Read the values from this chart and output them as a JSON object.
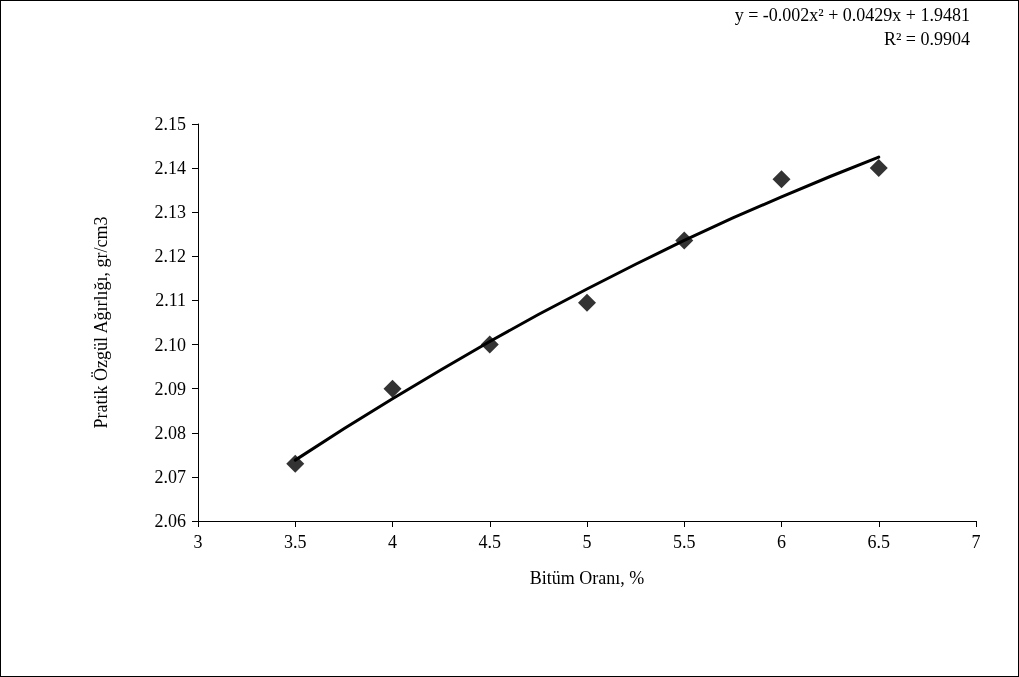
{
  "chart_data": {
    "type": "scatter",
    "xlabel": "Bitüm Oranı, %",
    "ylabel": "Pratik Özgül Ağırlığı, gr/cm3",
    "xlim": [
      3,
      7
    ],
    "xticks": [
      3,
      3.5,
      4,
      4.5,
      5,
      5.5,
      6,
      6.5,
      7
    ],
    "ylim": [
      2.06,
      2.15
    ],
    "yticks": [
      {
        "value": 2.06,
        "label": "2.06"
      },
      {
        "value": 2.07,
        "label": "2.07"
      },
      {
        "value": 2.08,
        "label": "2.08"
      },
      {
        "value": 2.09,
        "label": "2.09"
      },
      {
        "value": 2.1,
        "label": "2.10"
      },
      {
        "value": 2.11,
        "label": "2.11"
      },
      {
        "value": 2.12,
        "label": "2.12"
      },
      {
        "value": 2.13,
        "label": "2.13"
      },
      {
        "value": 2.14,
        "label": "2.14"
      },
      {
        "value": 2.15,
        "label": "2.15"
      }
    ],
    "grid": false,
    "marker": "diamond",
    "x": [
      3.5,
      4,
      4.5,
      5,
      5.5,
      6,
      6.5
    ],
    "series": [
      {
        "color": "#000000",
        "values": [
          2.073,
          2.09,
          2.1,
          2.1095,
          2.1236,
          2.1375,
          2.14
        ]
      },
      {
        "type": "line",
        "marker": "none",
        "line_style": "solid",
        "color": "#000000",
        "x": [
          3.5,
          3.75,
          4,
          4.25,
          4.5,
          4.75,
          5,
          5.25,
          5.5,
          5.75,
          6,
          6.25,
          6.5
        ],
        "values": [
          2.0738,
          2.0809,
          2.0877,
          2.0943,
          2.1007,
          2.1068,
          2.1126,
          2.1182,
          2.1236,
          2.1287,
          2.1335,
          2.1381,
          2.1425
        ]
      }
    ],
    "annotations": [
      "y = -0.002x² + 0.0429x + 1.9481",
      "R² = 0.9904"
    ]
  }
}
